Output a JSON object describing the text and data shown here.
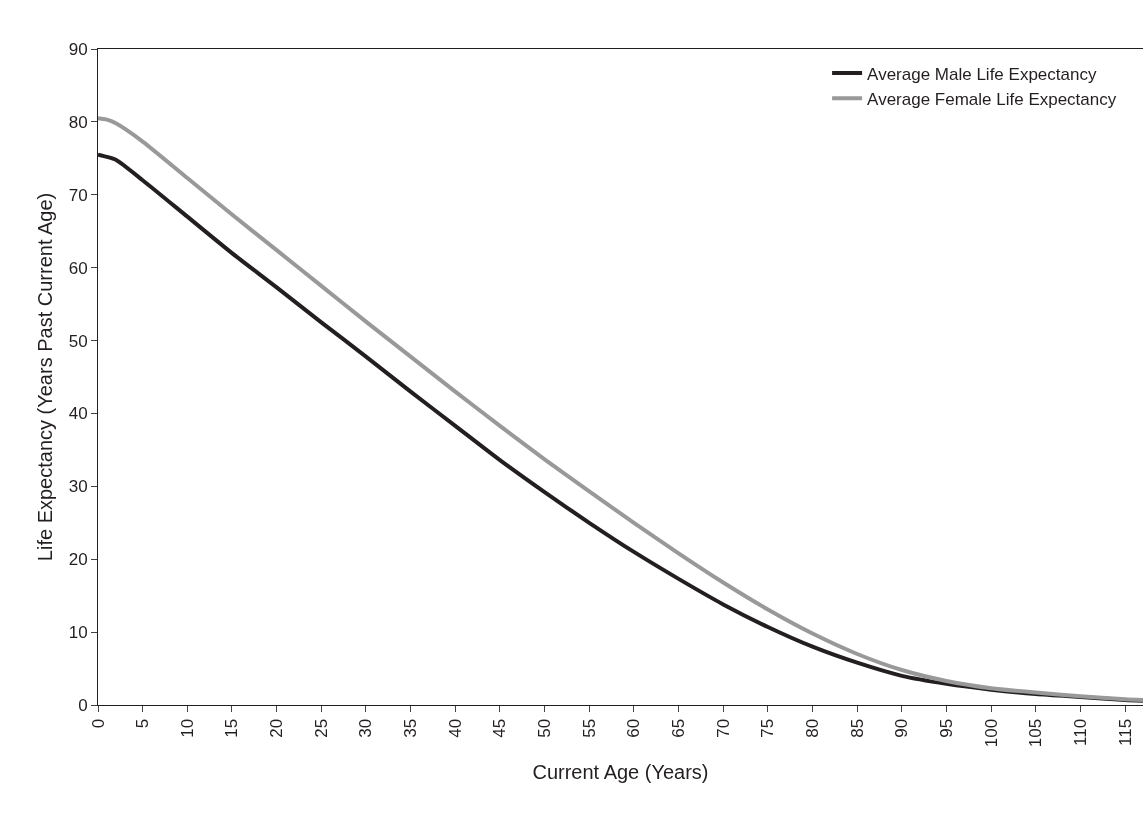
{
  "chart_data": {
    "type": "line",
    "xlabel": "Current Age (Years)",
    "ylabel": "Life Expectancy (Years Past Current Age)",
    "x": [
      0,
      1,
      2,
      5,
      10,
      15,
      20,
      25,
      30,
      35,
      40,
      45,
      50,
      55,
      60,
      65,
      70,
      75,
      80,
      85,
      90,
      95,
      100,
      105,
      110,
      115,
      117
    ],
    "series": [
      {
        "name": "Average Male Life Expectancy",
        "color": "#231f20",
        "values": [
          75.5,
          75.2,
          74.8,
          72,
          67,
          62,
          57.3,
          52.5,
          47.8,
          43,
          38.3,
          33.6,
          29.2,
          25,
          21,
          17.3,
          13.8,
          10.7,
          8,
          5.8,
          4,
          2.9,
          2.1,
          1.5,
          1.1,
          0.7,
          0.6
        ]
      },
      {
        "name": "Average Female Life Expectancy",
        "color": "#999999",
        "values": [
          80.5,
          80.3,
          79.8,
          77.3,
          72.3,
          67.3,
          62.4,
          57.5,
          52.6,
          47.8,
          43,
          38.3,
          33.7,
          29.3,
          25,
          20.8,
          16.8,
          13.1,
          9.8,
          7,
          4.8,
          3.3,
          2.3,
          1.7,
          1.2,
          0.8,
          0.7
        ]
      }
    ],
    "xlim": [
      0,
      117
    ],
    "xticks": [
      0,
      5,
      10,
      15,
      20,
      25,
      30,
      35,
      40,
      45,
      50,
      55,
      60,
      65,
      70,
      75,
      80,
      85,
      90,
      95,
      100,
      105,
      110,
      115
    ],
    "ylim": [
      0,
      90
    ],
    "yticks": [
      0,
      10,
      20,
      30,
      40,
      50,
      60,
      70,
      80,
      90
    ],
    "grid": false,
    "legend": "top right",
    "marker": "none",
    "line_style": "solid"
  }
}
